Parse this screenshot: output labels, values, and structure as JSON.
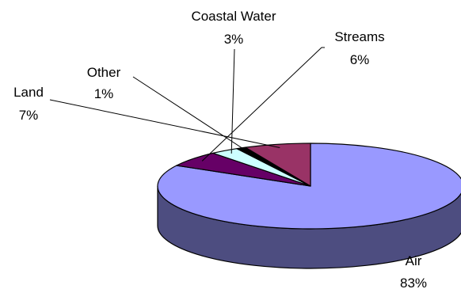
{
  "chart_data": {
    "type": "pie",
    "three_d": true,
    "title": "",
    "legend": "none",
    "slices": [
      {
        "name": "Air",
        "value": 83,
        "label": "83%",
        "color": "#9999FF",
        "side_color": "#4D4D80"
      },
      {
        "name": "Streams",
        "value": 6,
        "label": "6%",
        "color": "#660066",
        "side_color": "#330033"
      },
      {
        "name": "Coastal Water",
        "value": 3,
        "label": "3%",
        "color": "#CCFFFF",
        "side_color": "#668080"
      },
      {
        "name": "Other",
        "value": 1,
        "label": "1%",
        "color": "#000000",
        "side_color": "#000000"
      },
      {
        "name": "Land",
        "value": 7,
        "label": "7%",
        "color": "#993366",
        "side_color": "#4D1A33"
      }
    ]
  }
}
